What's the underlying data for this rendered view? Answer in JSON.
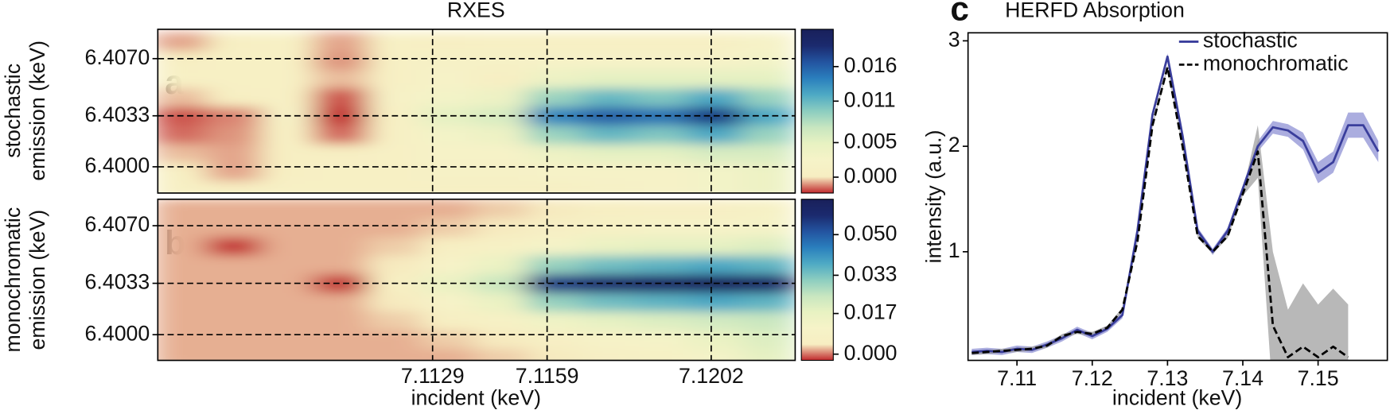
{
  "chart_data": [
    {
      "type": "heatmap",
      "title": "RXES",
      "panel_label": "a",
      "ylabel": [
        "stochastic",
        "emission (keV)"
      ],
      "x": [
        7.1063,
        7.1077,
        7.1091,
        7.1105,
        7.1119,
        7.1133,
        7.1147,
        7.1161,
        7.1175,
        7.1189,
        7.1203,
        7.1217
      ],
      "y": [
        6.3985,
        6.3997,
        6.4009,
        6.4021,
        6.4033,
        6.4045,
        6.4057,
        6.4069,
        6.4081
      ],
      "z": [
        [
          0.001,
          0.0005,
          0.001,
          0.001,
          0.001,
          0.001,
          0.001,
          0.001,
          0.0015,
          0.002,
          0.003,
          0.004
        ],
        [
          0.0005,
          -0.0008,
          0.0005,
          0.001,
          0.001,
          0.0015,
          0.0015,
          0.002,
          0.002,
          0.002,
          0.003,
          0.004
        ],
        [
          -0.0005,
          -0.0008,
          0.0005,
          0.0005,
          0.001,
          0.002,
          0.002,
          0.004,
          0.005,
          0.005,
          0.006,
          0.006
        ],
        [
          -0.0015,
          -0.001,
          0.001,
          -0.0015,
          0.001,
          0.003,
          0.004,
          0.009,
          0.011,
          0.01,
          0.012,
          0.009
        ],
        [
          -0.0018,
          -0.0012,
          0.0015,
          -0.0022,
          0.001,
          0.005,
          0.006,
          0.014,
          0.016,
          0.015,
          0.018,
          0.012
        ],
        [
          -0.0005,
          0.0005,
          0.001,
          -0.0018,
          0.0015,
          0.003,
          0.004,
          0.009,
          0.011,
          0.01,
          0.012,
          0.009
        ],
        [
          0.001,
          0.001,
          0.001,
          -0.0005,
          0.001,
          0.002,
          0.0005,
          0.004,
          0.005,
          0.005,
          0.005,
          0.005
        ],
        [
          0.0005,
          0.001,
          0.001,
          -0.001,
          0.001,
          0.0015,
          0.0015,
          0.002,
          0.002,
          0.002,
          0.002,
          0.003
        ],
        [
          -0.0008,
          0.0005,
          0.001,
          -0.0008,
          0.001,
          0.0005,
          0.001,
          0.001,
          0.001,
          0.001,
          0.001,
          0.002
        ]
      ],
      "xlim": [
        7.1057,
        7.1224
      ],
      "ylim": [
        6.3983,
        6.4089
      ],
      "yticks": [
        {
          "value": 6.407,
          "label": "6.4070"
        },
        6.4033,
        {
          "value": 6.4,
          "label": "6.4000"
        }
      ],
      "colormap": [
        "#c0282c",
        "#f7eec2",
        "#f6f3c8",
        "#e8f2c2",
        "#c8e6c0",
        "#8ccdc0",
        "#4eaac4",
        "#2a7fbd",
        "#2354a0",
        "#1b2a6e",
        "#19205a"
      ],
      "clim": [
        -0.0023,
        0.0214
      ],
      "cticks": [
        0.016,
        0.011,
        0.005,
        {
          "value": 0,
          "label": "0.000"
        }
      ]
    },
    {
      "type": "heatmap",
      "panel_label": "b",
      "ylabel": [
        "monochromatic",
        "emission (keV)"
      ],
      "xlabel": "incident (keV)",
      "x": [
        7.1063,
        7.1077,
        7.1091,
        7.1105,
        7.1119,
        7.1133,
        7.1147,
        7.1161,
        7.1175,
        7.1189,
        7.1203,
        7.1217
      ],
      "y": [
        6.3985,
        6.3997,
        6.4009,
        6.4021,
        6.4033,
        6.4045,
        6.4057,
        6.4069,
        6.4081
      ],
      "z": [
        [
          0.002,
          0.002,
          0.002,
          0.002,
          0.002,
          0.002,
          0.003,
          0.004,
          0.006,
          0.008,
          0.012,
          0.018
        ],
        [
          0.002,
          0.002,
          0.002,
          0.002,
          0.002,
          0.003,
          0.004,
          0.006,
          0.01,
          0.012,
          0.016,
          0.02
        ],
        [
          0.002,
          0.002,
          0.002,
          0.002,
          0.003,
          0.005,
          0.008,
          0.014,
          0.018,
          0.02,
          0.022,
          0.024
        ],
        [
          0.002,
          0.002,
          0.002,
          0.002,
          0.004,
          0.01,
          0.016,
          0.03,
          0.034,
          0.036,
          0.038,
          0.036
        ],
        [
          0.002,
          0.002,
          0.002,
          -0.002,
          0.005,
          0.016,
          0.024,
          0.055,
          0.058,
          0.06,
          0.063,
          0.06
        ],
        [
          0.002,
          0.002,
          0.002,
          0.002,
          0.004,
          0.01,
          0.016,
          0.03,
          0.034,
          0.036,
          0.038,
          0.036
        ],
        [
          0.002,
          -0.002,
          0.002,
          0.002,
          0.003,
          0.005,
          0.008,
          0.012,
          0.016,
          0.018,
          0.018,
          0.02
        ],
        [
          0.002,
          0.002,
          0.002,
          0.002,
          0.002,
          0.003,
          0.004,
          0.006,
          0.008,
          0.01,
          0.01,
          0.012
        ],
        [
          0.002,
          0.002,
          0.002,
          0.002,
          0.002,
          0.002,
          0.003,
          0.004,
          0.005,
          0.006,
          0.006,
          0.008
        ]
      ],
      "xlim": [
        7.1057,
        7.1224
      ],
      "ylim": [
        6.39835,
        6.4087
      ],
      "xticks": [
        7.1129,
        7.1159,
        7.1202
      ],
      "yticks": [
        {
          "value": 6.407,
          "label": "6.4070"
        },
        6.4033,
        {
          "value": 6.4,
          "label": "6.4000"
        }
      ],
      "colormap": [
        "#c0282c",
        "#f7eec2",
        "#f6f3c8",
        "#e8f2c2",
        "#c8e6c0",
        "#8ccdc0",
        "#4eaac4",
        "#2a7fbd",
        "#2354a0",
        "#1b2a6e",
        "#19205a"
      ],
      "clim": [
        -0.0026,
        0.0648
      ],
      "cticks": [
        {
          "value": 0.05,
          "label": "0.050"
        },
        0.033,
        0.017,
        {
          "value": 0,
          "label": "0.000"
        }
      ]
    },
    {
      "type": "line",
      "title": "HERFD Absorption",
      "panel_label": "c",
      "xlabel": "incident (keV)",
      "ylabel": "intensity (a.u.)",
      "x": [
        7.104,
        7.106,
        7.108,
        7.11,
        7.112,
        7.114,
        7.116,
        7.118,
        7.12,
        7.122,
        7.124,
        7.126,
        7.128,
        7.13,
        7.132,
        7.134,
        7.136,
        7.138,
        7.14,
        7.142,
        7.144,
        7.146,
        7.148,
        7.15,
        7.152,
        7.154,
        7.156,
        7.158
      ],
      "xlim": [
        7.1035,
        7.1592
      ],
      "ylim": [
        -0.03,
        3.076
      ],
      "xticks": [
        7.11,
        7.12,
        7.13,
        7.14,
        7.15
      ],
      "yticks": [
        1,
        2,
        3
      ],
      "legend": "upper right",
      "series": [
        {
          "name": "stochastic",
          "color": "#3a3e9c",
          "band_color": "#8f92d4",
          "dash": "solid",
          "values": [
            0.05,
            0.06,
            0.05,
            0.08,
            0.07,
            0.12,
            0.18,
            0.26,
            0.2,
            0.27,
            0.4,
            1.2,
            2.3,
            2.85,
            2.1,
            1.2,
            1.0,
            1.2,
            1.6,
            2.0,
            2.18,
            2.15,
            2.05,
            1.75,
            1.85,
            2.2,
            2.2,
            1.95
          ],
          "errors": [
            0.03,
            0.03,
            0.03,
            0.03,
            0.03,
            0.03,
            0.03,
            0.03,
            0.03,
            0.03,
            0.03,
            0.03,
            0.03,
            0.03,
            0.03,
            0.03,
            0.03,
            0.03,
            0.03,
            0.05,
            0.06,
            0.06,
            0.08,
            0.1,
            0.1,
            0.12,
            0.12,
            0.1
          ]
        },
        {
          "name": "monochromatic",
          "color": "#000000",
          "band_color": "#a0a0a0",
          "dash": "dashed",
          "values": [
            0.04,
            0.05,
            0.06,
            0.07,
            0.08,
            0.11,
            0.2,
            0.24,
            0.22,
            0.28,
            0.45,
            1.1,
            2.2,
            2.75,
            2.0,
            1.15,
            1.0,
            1.15,
            1.55,
            1.95,
            0.3,
            0.0,
            0.1,
            0.0,
            0.1,
            0.0,
            null,
            null
          ],
          "errors": [
            0.02,
            0.02,
            0.02,
            0.02,
            0.02,
            0.02,
            0.02,
            0.02,
            0.02,
            0.02,
            0.02,
            0.02,
            0.02,
            0.02,
            0.02,
            0.02,
            0.02,
            0.02,
            0.02,
            0.25,
            0.7,
            0.45,
            0.6,
            0.5,
            0.55,
            0.5,
            null,
            null
          ]
        }
      ]
    }
  ]
}
